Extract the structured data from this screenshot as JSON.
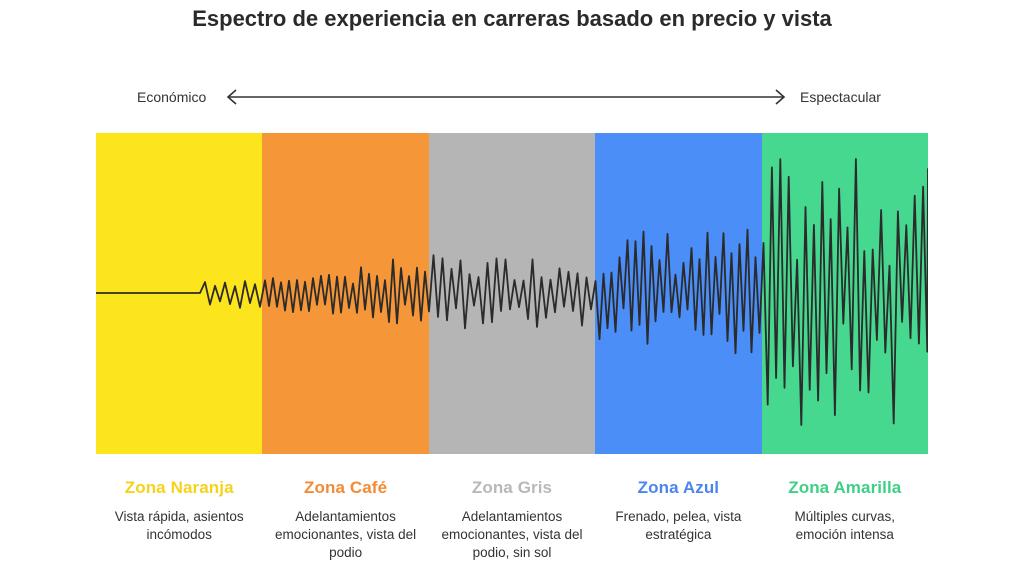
{
  "title": "Espectro de experiencia en carreras basado en precio y vista",
  "axis": {
    "left_label": "Económico",
    "right_label": "Espectacular"
  },
  "zones": [
    {
      "name": "Zona Naranja",
      "description": "Vista rápida, asientos incómodos",
      "band_color": "#fce51c",
      "title_color": "#f6d21c"
    },
    {
      "name": "Zona Café",
      "description": "Adelantamientos emocionantes, vista del podio",
      "band_color": "#f59638",
      "title_color": "#f28b34"
    },
    {
      "name": "Zona Gris",
      "description": "Adelantamientos emocionantes, vista del podio, sin sol",
      "band_color": "#b5b5b5",
      "title_color": "#b8b8b8"
    },
    {
      "name": "Zona Azul",
      "description": "Frenado, pelea, vista estratégica",
      "band_color": "#4c8ef7",
      "title_color": "#4b86ee"
    },
    {
      "name": "Zona Amarilla",
      "description": "Múltiples curvas, emoción intensa",
      "band_color": "#45d88e",
      "title_color": "#3fcf86"
    }
  ],
  "colors": {
    "waveform": "#2b2b2b",
    "arrow": "#333333"
  }
}
